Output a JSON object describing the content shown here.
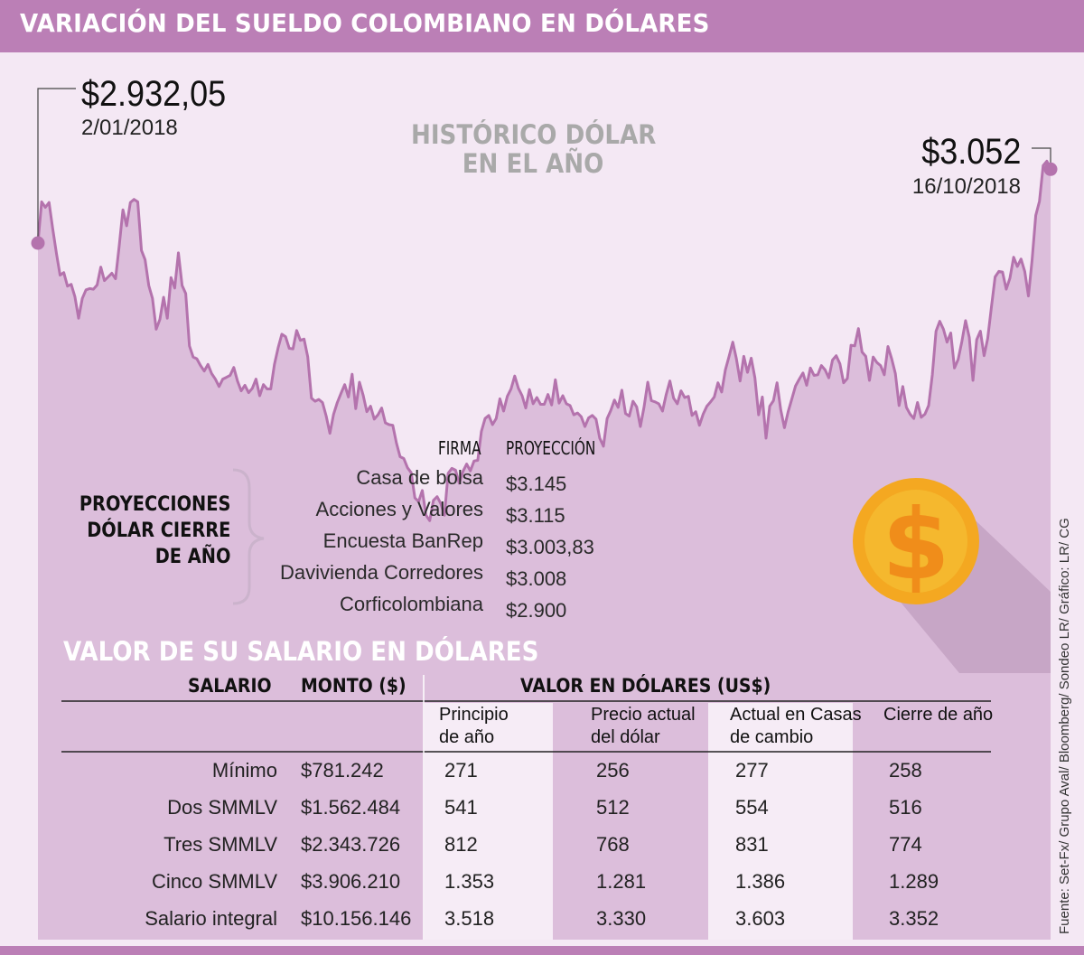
{
  "title": "VARIACIÓN DEL SUELDO COLOMBIANO EN DÓLARES",
  "chart_title": [
    "HISTÓRICO DÓLAR",
    "EN EL AÑO"
  ],
  "start_point": {
    "value": "$2.932,05",
    "date": "2/01/2018"
  },
  "end_point": {
    "value": "$3.052",
    "date": "16/10/2018"
  },
  "colors": {
    "header": "#bb7fb6",
    "line": "#b473ad",
    "area": "#dcbedb",
    "background": "#f4e8f4",
    "coin": "#f5b82e"
  },
  "coin_icon": "dollar-coin-icon",
  "chart_data": {
    "type": "area",
    "title": "HISTÓRICO DÓLAR EN EL AÑO",
    "x_range": [
      "2/01/2018",
      "16/10/2018"
    ],
    "y": [
      2932.05,
      2999,
      2990,
      2998,
      2955,
      2915,
      2880,
      2884,
      2862,
      2865,
      2845,
      2810,
      2842,
      2856,
      2858,
      2857,
      2864,
      2893,
      2871,
      2877,
      2883,
      2874,
      2928,
      2986,
      2960,
      2998,
      3003,
      2999,
      2920,
      2905,
      2863,
      2842,
      2792,
      2808,
      2844,
      2810,
      2876,
      2859,
      2916,
      2863,
      2850,
      2765,
      2747,
      2744,
      2733,
      2724,
      2735,
      2720,
      2711,
      2699,
      2711,
      2714,
      2717,
      2730,
      2708,
      2692,
      2701,
      2689,
      2696,
      2711,
      2684,
      2702,
      2695,
      2695,
      2735,
      2762,
      2784,
      2780,
      2761,
      2760,
      2790,
      2774,
      2776,
      2747,
      2680,
      2675,
      2678,
      2673,
      2651,
      2623,
      2654,
      2673,
      2688,
      2702,
      2682,
      2719,
      2663,
      2706,
      2685,
      2658,
      2667,
      2646,
      2653,
      2664,
      2640,
      2637,
      2636,
      2607,
      2585,
      2582,
      2567,
      2559,
      2518,
      2512,
      2530,
      2490,
      2481,
      2514,
      2520,
      2509,
      2490,
      2558,
      2566,
      2563,
      2542,
      2561,
      2573,
      2562,
      2578,
      2579,
      2626,
      2647,
      2652,
      2637,
      2647,
      2679,
      2659,
      2683,
      2695,
      2716,
      2696,
      2684,
      2664,
      2694,
      2671,
      2681,
      2670,
      2670,
      2686,
      2669,
      2710,
      2672,
      2684,
      2671,
      2668,
      2653,
      2656,
      2650,
      2634,
      2648,
      2652,
      2646,
      2615,
      2602,
      2647,
      2660,
      2677,
      2665,
      2693,
      2655,
      2651,
      2675,
      2666,
      2634,
      2666,
      2706,
      2676,
      2674,
      2671,
      2659,
      2686,
      2708,
      2680,
      2671,
      2692,
      2681,
      2683,
      2652,
      2658,
      2636,
      2654,
      2667,
      2674,
      2682,
      2705,
      2690,
      2726,
      2748,
      2771,
      2744,
      2708,
      2748,
      2722,
      2745,
      2713,
      2653,
      2682,
      2615,
      2667,
      2676,
      2705,
      2661,
      2632,
      2658,
      2679,
      2700,
      2711,
      2721,
      2701,
      2729,
      2717,
      2718,
      2733,
      2726,
      2713,
      2742,
      2749,
      2736,
      2705,
      2712,
      2766,
      2765,
      2793,
      2755,
      2748,
      2709,
      2747,
      2738,
      2733,
      2718,
      2764,
      2744,
      2720,
      2668,
      2699,
      2665,
      2654,
      2647,
      2673,
      2649,
      2654,
      2668,
      2718,
      2789,
      2805,
      2792,
      2771,
      2786,
      2729,
      2743,
      2772,
      2806,
      2779,
      2709,
      2775,
      2789,
      2749,
      2777,
      2828,
      2877,
      2886,
      2885,
      2857,
      2875,
      2909,
      2894,
      2906,
      2886,
      2846,
      2904,
      2977,
      3000,
      3058,
      3065,
      3052
    ]
  },
  "projections": {
    "side_title": [
      "PROYECCIONES",
      "DÓLAR CIERRE",
      "DE AÑO"
    ],
    "col_firm": "FIRMA",
    "col_value": "PROYECCIÓN",
    "rows": [
      {
        "firm": "Casa de bolsa",
        "value": "$3.145"
      },
      {
        "firm": "Acciones y Valores",
        "value": "$3.115"
      },
      {
        "firm": "Encuesta BanRep",
        "value": "$3.003,83"
      },
      {
        "firm": "Davivienda Corredores",
        "value": "$3.008"
      },
      {
        "firm": "Corficolombiana",
        "value": "$2.900"
      }
    ]
  },
  "salary": {
    "title": "VALOR DE SU SALARIO EN DÓLARES",
    "col_salary": "SALARIO",
    "col_amount": "MONTO ($)",
    "col_group": "VALOR EN DÓLARES (US$)",
    "sub_headers": [
      [
        "Principio",
        "de año"
      ],
      [
        "Precio actual",
        "del dólar"
      ],
      [
        "Actual en Casas",
        "de cambio"
      ],
      [
        "Cierre de año",
        ""
      ]
    ],
    "rows": [
      {
        "label": "Mínimo",
        "amount": "$781.242",
        "values": [
          "271",
          "256",
          "277",
          "258"
        ]
      },
      {
        "label": "Dos SMMLV",
        "amount": "$1.562.484",
        "values": [
          "541",
          "512",
          "554",
          "516"
        ]
      },
      {
        "label": "Tres SMMLV",
        "amount": "$2.343.726",
        "values": [
          "812",
          "768",
          "831",
          "774"
        ]
      },
      {
        "label": "Cinco SMMLV",
        "amount": "$3.906.210",
        "values": [
          "1.353",
          "1.281",
          "1.386",
          "1.289"
        ]
      },
      {
        "label": "Salario integral",
        "amount": "$10.156.146",
        "values": [
          "3.518",
          "3.330",
          "3.603",
          "3.352"
        ]
      }
    ]
  },
  "source": "Fuente: Set-Fx/ Grupo Aval/ Bloomberg/ Sondeo LR/ Gráfico: LR/ CG"
}
